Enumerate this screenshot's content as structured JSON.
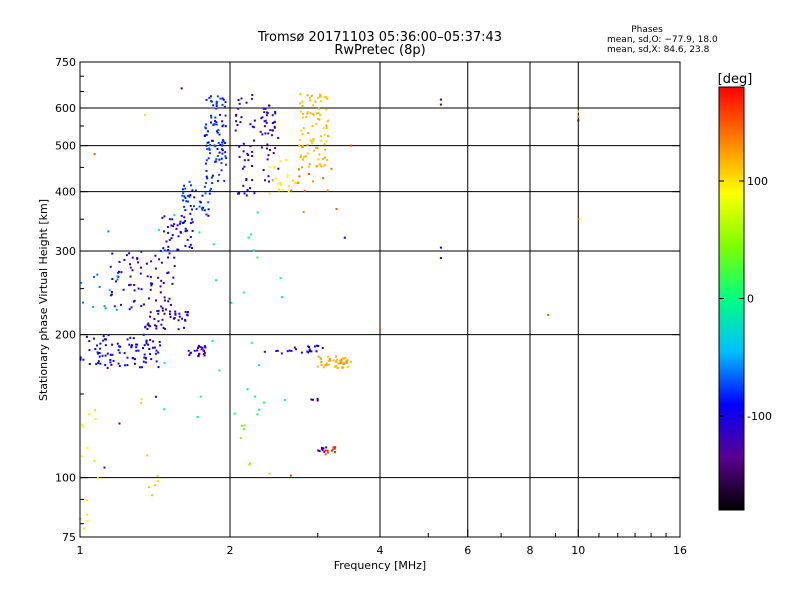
{
  "chart_data": {
    "type": "scatter",
    "title": "Tromsø 20171103 05:36:00–05:37:43",
    "subtitle": "RwPretec (8p)",
    "xlabel": "Frequency [MHz]",
    "ylabel": "Stationary phase Virtual Height [km]",
    "xscale": "log",
    "yscale": "log",
    "xlim": [
      1,
      16
    ],
    "ylim": [
      75,
      750
    ],
    "xticks": [
      1,
      2,
      4,
      6,
      8,
      10,
      16
    ],
    "yticks": [
      75,
      100,
      200,
      300,
      400,
      500,
      600,
      750
    ],
    "grid": true,
    "stats": {
      "heading": "Phases",
      "o_line": "mean, sd,O: −77.9, 18.0",
      "x_line": "mean, sd,X:  84.6, 23.8"
    },
    "colorbar": {
      "label": "[deg]",
      "range": [
        -180,
        180
      ],
      "ticks": [
        100,
        0,
        -100
      ],
      "colormap": "rainbow",
      "colors": [
        "#000000",
        "#5a0090",
        "#0000ff",
        "#00c0ff",
        "#00ff80",
        "#80ff00",
        "#ffff00",
        "#ff8000",
        "#ff0000"
      ]
    },
    "clusters": [
      {
        "x": [
          1.0,
          1.45
        ],
        "y": [
          170,
          200
        ],
        "phase": -95,
        "n": 95
      },
      {
        "x": [
          1.35,
          1.65
        ],
        "y": [
          205,
          228
        ],
        "phase": -110,
        "n": 40
      },
      {
        "x": [
          1.15,
          1.55
        ],
        "y": [
          220,
          300
        ],
        "phase": -105,
        "n": 80
      },
      {
        "x": [
          1.45,
          1.7
        ],
        "y": [
          300,
          360
        ],
        "phase": -102,
        "n": 45
      },
      {
        "x": [
          1.6,
          1.85
        ],
        "y": [
          355,
          420
        ],
        "phase": -80,
        "n": 45
      },
      {
        "x": [
          1.78,
          1.97
        ],
        "y": [
          420,
          645
        ],
        "phase": -82,
        "n": 95
      },
      {
        "x": [
          2.05,
          2.25
        ],
        "y": [
          390,
          645
        ],
        "phase": -105,
        "n": 45
      },
      {
        "x": [
          2.3,
          2.5
        ],
        "y": [
          420,
          610
        ],
        "phase": -112,
        "n": 45
      },
      {
        "x": [
          2.4,
          2.75
        ],
        "y": [
          395,
          470
        ],
        "phase": 90,
        "n": 22
      },
      {
        "x": [
          2.75,
          3.15
        ],
        "y": [
          450,
          645
        ],
        "phase": 115,
        "n": 90
      },
      {
        "x": [
          1.65,
          1.8
        ],
        "y": [
          180,
          190
        ],
        "phase": -125,
        "n": 25
      },
      {
        "x": [
          2.3,
          2.8
        ],
        "y": [
          182,
          188
        ],
        "phase": -105,
        "n": 10
      },
      {
        "x": [
          2.85,
          3.1
        ],
        "y": [
          183,
          190
        ],
        "phase": -100,
        "n": 12
      },
      {
        "x": [
          3.0,
          3.5
        ],
        "y": [
          170,
          180
        ],
        "phase": 120,
        "n": 45
      },
      {
        "x": [
          3.0,
          3.15
        ],
        "y": [
          113,
          116
        ],
        "phase": -140,
        "n": 8
      },
      {
        "x": [
          3.1,
          3.3
        ],
        "y": [
          112,
          116
        ],
        "phase": 160,
        "n": 10
      },
      {
        "x": [
          1.0,
          1.1
        ],
        "y": [
          78,
          140
        ],
        "phase": 75,
        "n": 14
      },
      {
        "x": [
          1.0,
          1.2
        ],
        "y": [
          225,
          270
        ],
        "phase": -60,
        "n": 12
      },
      {
        "x": [
          1.3,
          1.45
        ],
        "y": [
          80,
          150
        ],
        "phase": 110,
        "n": 8
      },
      {
        "x": [
          1.4,
          2.6
        ],
        "y": [
          130,
          370
        ],
        "phase": 0,
        "n": 30
      },
      {
        "x": [
          2.1,
          2.4
        ],
        "y": [
          100,
          130
        ],
        "phase": 40,
        "n": 6
      },
      {
        "x": [
          2.6,
          3.3
        ],
        "y": [
          350,
          450
        ],
        "phase": 140,
        "n": 12
      },
      {
        "x": [
          2.9,
          3.0
        ],
        "y": [
          145,
          148
        ],
        "phase": -150,
        "n": 4
      }
    ],
    "points": [
      {
        "x": 1.6,
        "y": 660,
        "phase": -100
      },
      {
        "x": 1.35,
        "y": 580,
        "phase": 100
      },
      {
        "x": 1.07,
        "y": 480,
        "phase": 150
      },
      {
        "x": 3.5,
        "y": 500,
        "phase": 160
      },
      {
        "x": 3.4,
        "y": 320,
        "phase": -90
      },
      {
        "x": 1.14,
        "y": 330,
        "phase": -60
      },
      {
        "x": 1.12,
        "y": 105,
        "phase": -135
      },
      {
        "x": 1.2,
        "y": 130,
        "phase": -135
      },
      {
        "x": 1.42,
        "y": 148,
        "phase": -90
      },
      {
        "x": 4.0,
        "y": 205,
        "phase": 150
      },
      {
        "x": 5.3,
        "y": 625,
        "phase": -110
      },
      {
        "x": 5.3,
        "y": 610,
        "phase": -120
      },
      {
        "x": 5.3,
        "y": 305,
        "phase": -90
      },
      {
        "x": 5.3,
        "y": 290,
        "phase": -110
      },
      {
        "x": 8.7,
        "y": 220,
        "phase": 150
      },
      {
        "x": 10.0,
        "y": 590,
        "phase": 100
      },
      {
        "x": 10.0,
        "y": 575,
        "phase": 130
      },
      {
        "x": 10.0,
        "y": 565,
        "phase": -110
      },
      {
        "x": 10.05,
        "y": 350,
        "phase": 100
      },
      {
        "x": 2.65,
        "y": 101,
        "phase": 160
      },
      {
        "x": 2.4,
        "y": 102,
        "phase": 110
      }
    ]
  }
}
